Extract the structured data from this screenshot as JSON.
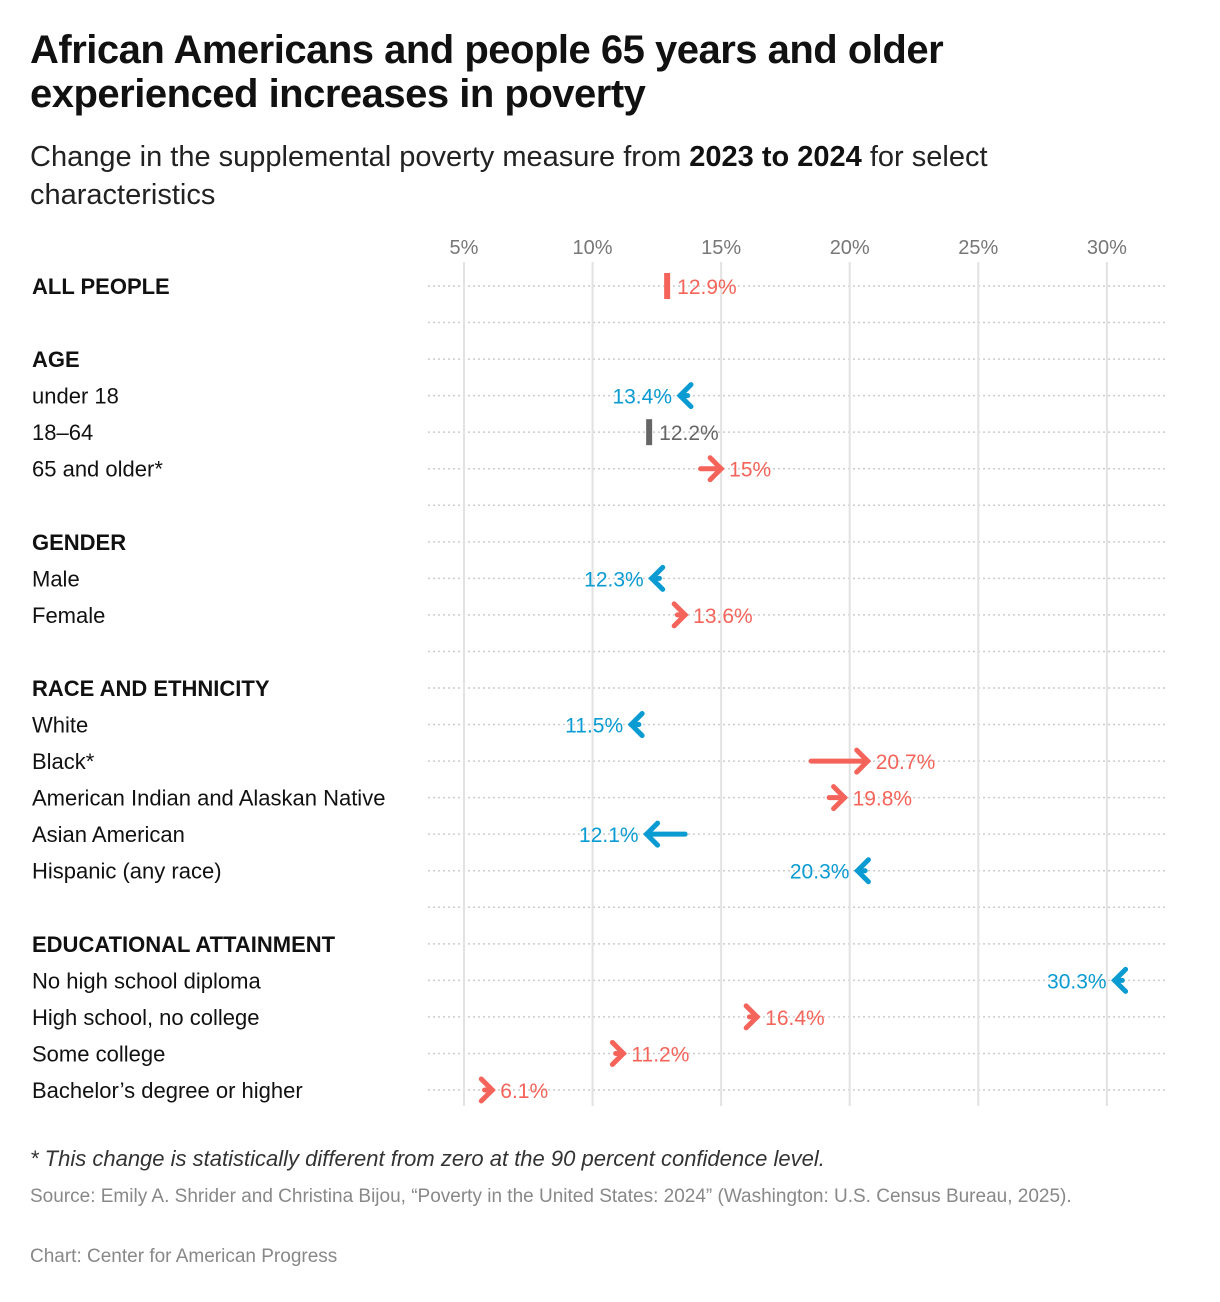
{
  "title": "African Americans and people 65 years and older experienced increases in poverty",
  "subtitle": {
    "pre": "Change in the supplemental poverty measure from ",
    "bold": "2023 to 2024",
    "post": " for select characteristics"
  },
  "footnote": "* This change is statistically different from zero at the 90 percent confidence level.",
  "source": "Source: Emily A. Shrider and Christina Bijou, “Poverty in the United States: 2024” (Washington: U.S. Census Bureau, 2025).",
  "credit": "Chart: Center for American Progress",
  "colors": {
    "increase": "#f4645a",
    "decrease": "#0a9bd3",
    "nochange": "#666666"
  },
  "chart_data": {
    "type": "arrow",
    "xlim": [
      3.6,
      32.3
    ],
    "xticks": [
      5,
      10,
      15,
      20,
      25,
      30
    ],
    "xtick_labels": [
      "5%",
      "10%",
      "15%",
      "20%",
      "25%",
      "30%"
    ],
    "grid": true,
    "rows": [
      {
        "label": "ALL PEOPLE",
        "header": true,
        "from": 12.9,
        "to": 12.9,
        "value_label": "12.9%",
        "dir": "increase"
      },
      {
        "label": "",
        "spacer": true
      },
      {
        "label": "AGE",
        "header": true
      },
      {
        "label": "under 18",
        "from": 13.7,
        "to": 13.4,
        "value_label": "13.4%",
        "dir": "decrease"
      },
      {
        "label": "18–64",
        "from": 12.2,
        "to": 12.2,
        "value_label": "12.2%",
        "dir": "nochange"
      },
      {
        "label": "65 and older*",
        "from": 14.2,
        "to": 15.0,
        "value_label": "15%",
        "dir": "increase"
      },
      {
        "label": "",
        "spacer": true
      },
      {
        "label": "GENDER",
        "header": true
      },
      {
        "label": "Male",
        "from": 12.6,
        "to": 12.3,
        "value_label": "12.3%",
        "dir": "decrease"
      },
      {
        "label": "Female",
        "from": 13.3,
        "to": 13.6,
        "value_label": "13.6%",
        "dir": "increase"
      },
      {
        "label": "",
        "spacer": true
      },
      {
        "label": "RACE AND ETHNICITY",
        "header": true
      },
      {
        "label": "White",
        "from": 11.8,
        "to": 11.5,
        "value_label": "11.5%",
        "dir": "decrease"
      },
      {
        "label": "Black*",
        "from": 18.5,
        "to": 20.7,
        "value_label": "20.7%",
        "dir": "increase"
      },
      {
        "label": "American Indian and Alaskan Native",
        "from": 19.2,
        "to": 19.8,
        "value_label": "19.8%",
        "dir": "increase"
      },
      {
        "label": "Asian American",
        "from": 13.6,
        "to": 12.1,
        "value_label": "12.1%",
        "dir": "decrease"
      },
      {
        "label": "Hispanic (any race)",
        "from": 20.6,
        "to": 20.3,
        "value_label": "20.3%",
        "dir": "decrease"
      },
      {
        "label": "",
        "spacer": true
      },
      {
        "label": "EDUCATIONAL ATTAINMENT",
        "header": true
      },
      {
        "label": "No high school diploma",
        "from": 30.6,
        "to": 30.3,
        "value_label": "30.3%",
        "dir": "decrease"
      },
      {
        "label": "High school, no college",
        "from": 16.1,
        "to": 16.4,
        "value_label": "16.4%",
        "dir": "increase"
      },
      {
        "label": "Some college",
        "from": 10.9,
        "to": 11.2,
        "value_label": "11.2%",
        "dir": "increase"
      },
      {
        "label": "Bachelor’s degree or higher",
        "from": 5.8,
        "to": 6.1,
        "value_label": "6.1%",
        "dir": "increase"
      }
    ]
  }
}
